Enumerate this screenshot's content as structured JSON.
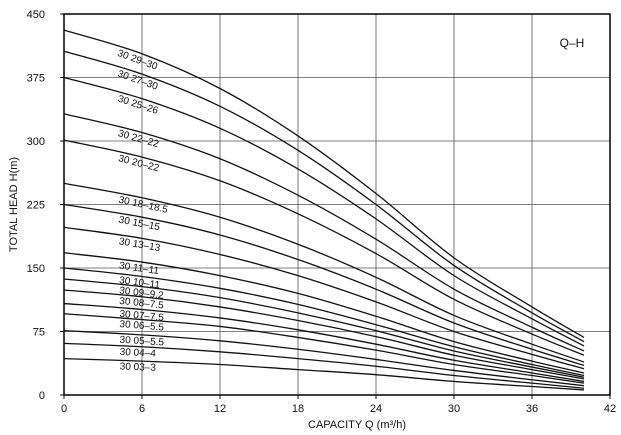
{
  "chart_data": {
    "type": "line",
    "tag": "Q–H",
    "xlabel": "CAPACITY  Q (m³/h)",
    "ylabel": "TOTAL HEAD  H(m)",
    "xlim": [
      0,
      42
    ],
    "ylim": [
      0,
      450
    ],
    "xticks": [
      0,
      6,
      12,
      18,
      24,
      30,
      36,
      42
    ],
    "yticks": [
      0,
      75,
      150,
      225,
      300,
      375,
      450
    ],
    "grid": true,
    "x": [
      0,
      6,
      12,
      18,
      24,
      30,
      36,
      40
    ],
    "series": [
      {
        "name": "30 29–30",
        "values": [
          431,
          403,
          362,
          306,
          238,
          162,
          104,
          68
        ]
      },
      {
        "name": "30 27–30",
        "values": [
          406,
          379,
          341,
          289,
          225,
          153,
          97,
          63
        ]
      },
      {
        "name": "30 25–26",
        "values": [
          375,
          350,
          315,
          267,
          208,
          141,
          90,
          58
        ]
      },
      {
        "name": "30 22–22",
        "values": [
          332,
          310,
          279,
          236,
          184,
          125,
          80,
          52
        ]
      },
      {
        "name": "30 20–22",
        "values": [
          301,
          281,
          253,
          214,
          167,
          113,
          72,
          47
        ]
      },
      {
        "name": "30 18–18.5",
        "values": [
          250,
          233,
          210,
          178,
          139,
          94,
          60,
          39
        ]
      },
      {
        "name": "30 15–15",
        "values": [
          225,
          210,
          189,
          160,
          125,
          85,
          54,
          35
        ]
      },
      {
        "name": "30 13–13",
        "values": [
          198,
          185,
          166,
          141,
          110,
          75,
          48,
          31
        ]
      },
      {
        "name": "30 11–11",
        "values": [
          168,
          157,
          141,
          120,
          93,
          63,
          40,
          26
        ]
      },
      {
        "name": "30 10–11",
        "values": [
          150,
          140,
          126,
          107,
          83,
          57,
          36,
          23
        ]
      },
      {
        "name": "30 09–9.2",
        "values": [
          137,
          128,
          115,
          97,
          76,
          52,
          33,
          21
        ]
      },
      {
        "name": "30 08–7.5",
        "values": [
          124,
          116,
          104,
          88,
          69,
          47,
          30,
          19
        ]
      },
      {
        "name": "30 07–7.5",
        "values": [
          108,
          101,
          91,
          77,
          60,
          41,
          26,
          16
        ]
      },
      {
        "name": "30 06–5.5",
        "values": [
          96,
          89,
          81,
          68,
          53,
          36,
          23,
          14
        ]
      },
      {
        "name": "30 05–5.5",
        "values": [
          76,
          71,
          64,
          54,
          42,
          29,
          18,
          11
        ]
      },
      {
        "name": "30 04–4",
        "values": [
          61,
          57,
          51,
          43,
          34,
          23,
          14,
          8
        ]
      },
      {
        "name": "30 03–3",
        "values": [
          43,
          40,
          36,
          30,
          24,
          16,
          10,
          6
        ]
      }
    ]
  }
}
